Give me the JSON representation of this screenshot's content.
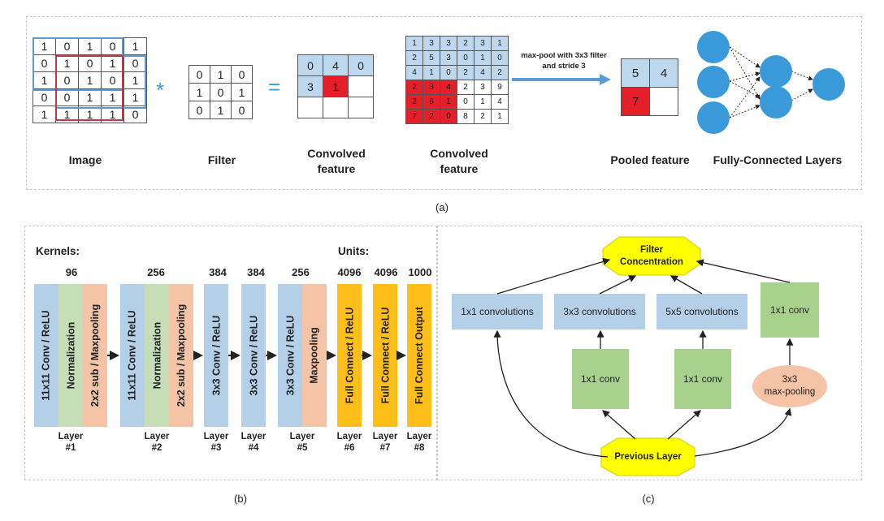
{
  "panel_a": {
    "caption": "(a)",
    "image_label": "Image",
    "image_grid": [
      [
        "1",
        "0",
        "1",
        "0",
        "1"
      ],
      [
        "0",
        "1",
        "0",
        "1",
        "0"
      ],
      [
        "1",
        "0",
        "1",
        "0",
        "1"
      ],
      [
        "0",
        "0",
        "1",
        "1",
        "1"
      ],
      [
        "1",
        "1",
        "1",
        "1",
        "0"
      ]
    ],
    "conv_op": "*",
    "equals": "=",
    "filter_label": "Filter",
    "filter_grid": [
      [
        "0",
        "1",
        "0"
      ],
      [
        "1",
        "0",
        "1"
      ],
      [
        "0",
        "1",
        "0"
      ]
    ],
    "conv_label_1": "Convolved",
    "conv_label_2": "feature",
    "conv_grid": [
      [
        "0",
        "4",
        "0"
      ],
      [
        "3",
        "1",
        ""
      ],
      [
        "",
        "",
        ""
      ]
    ],
    "big_label_1": "Convolved",
    "big_label_2": "feature",
    "big_grid": [
      [
        "1",
        "3",
        "3",
        "2",
        "3",
        "1"
      ],
      [
        "2",
        "5",
        "3",
        "0",
        "1",
        "0"
      ],
      [
        "4",
        "1",
        "0",
        "2",
        "4",
        "2"
      ],
      [
        "2",
        "3",
        "4",
        "2",
        "3",
        "9"
      ],
      [
        "2",
        "6",
        "1",
        "0",
        "1",
        "4"
      ],
      [
        "7",
        "2",
        "0",
        "8",
        "2",
        "1"
      ]
    ],
    "pool_text_1": "max-pool with 3x3 filter",
    "pool_text_2": "and stride 3",
    "pooled_label": "Pooled feature",
    "pooled_grid": [
      [
        "5",
        "4"
      ],
      [
        "7",
        ""
      ]
    ],
    "fc_label": "Fully-Connected Layers"
  },
  "panel_b": {
    "caption": "(b)",
    "kernels_label": "Kernels:",
    "units_label": "Units:",
    "numbers": [
      "96",
      "256",
      "384",
      "384",
      "256",
      "4096",
      "4096",
      "1000"
    ],
    "boxes": [
      "11x11 Conv / ReLU",
      "Normalization",
      "2x2 sub / Maxpooling",
      "11x11 Conv / ReLU",
      "Normalization",
      "2x2 sub / Maxpooling",
      "3x3 Conv / ReLU",
      "3x3 Conv / ReLU",
      "3x3 Conv / ReLU",
      "Maxpooling",
      "Full Connect / ReLU",
      "Full Connect / ReLU",
      "Full Connect Output"
    ],
    "layer_word": "Layer",
    "layers": [
      "#1",
      "#2",
      "#3",
      "#4",
      "#5",
      "#6",
      "#7",
      "#8"
    ]
  },
  "panel_c": {
    "caption": "(c)",
    "filter_concat_1": "Filter",
    "filter_concat_2": "Concentration",
    "conv1x1": "1x1 convolutions",
    "conv3x3": "3x3 convolutions",
    "conv5x5": "5x5 convolutions",
    "conv1x1_a": "1x1 conv",
    "conv1x1_b": "1x1 conv",
    "conv1x1_c": "1x1 conv",
    "maxpool_1": "3x3",
    "maxpool_2": "max-pooling",
    "previous_layer": "Previous Layer"
  },
  "colors": {
    "blue": "#5b9bd5",
    "light_blue": "#bdd7ee",
    "red": "#e41f2a",
    "orange": "#ffbe1a",
    "yellow": "#ffff00",
    "green": "#a9d18e",
    "peach": "#f5c3a6"
  }
}
